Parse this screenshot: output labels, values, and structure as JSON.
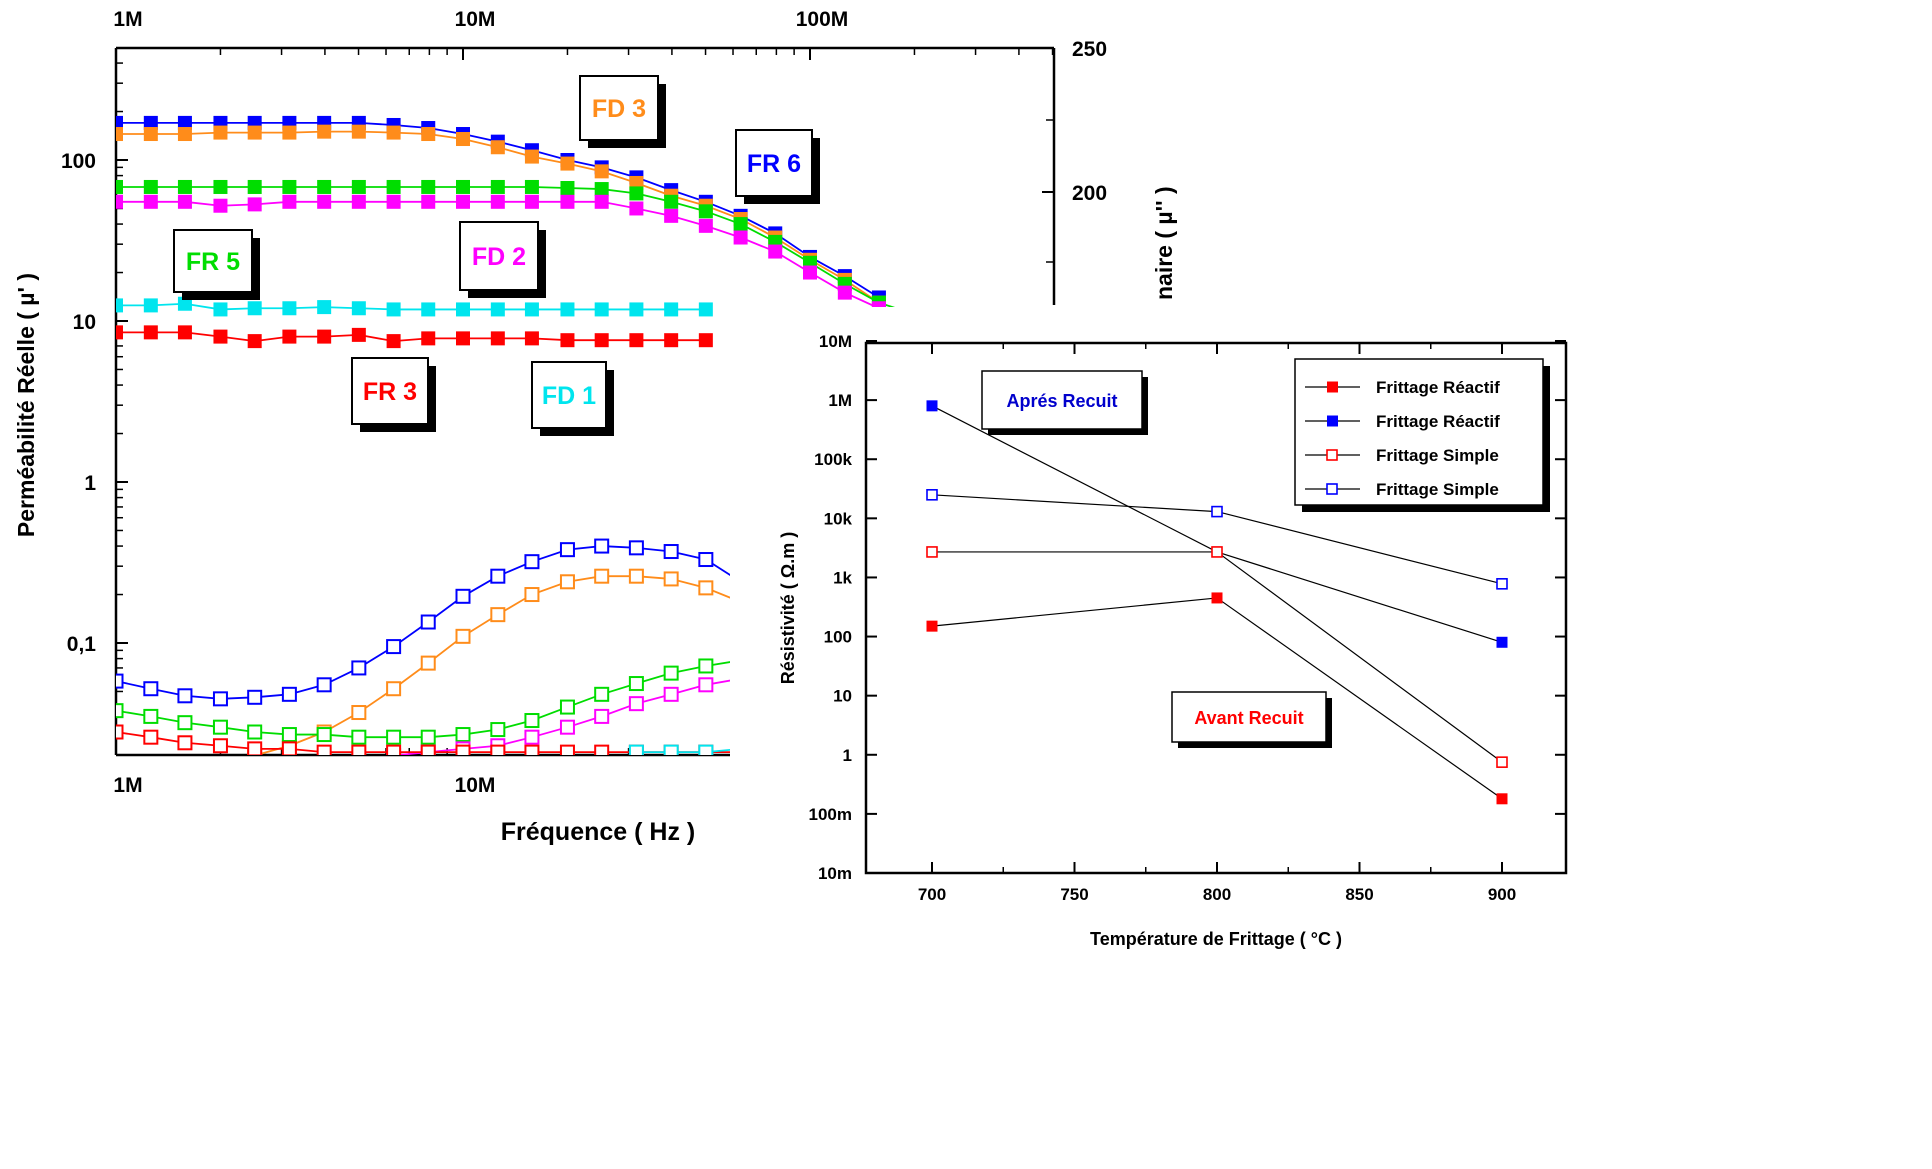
{
  "chart_data": [
    {
      "type": "line",
      "xscale": "log",
      "yscale": "log",
      "xlim": [
        1000000,
        60000000
      ],
      "ylim": [
        0.02,
        500
      ],
      "x_tick_labels": [
        "1M",
        "10M"
      ],
      "top_tick_labels": [
        "1M",
        "10M",
        "100M"
      ],
      "y_tick_labels": [
        "100",
        "10",
        "1",
        "0,1"
      ],
      "right_tick_labels": [
        "250",
        "200"
      ],
      "xlabel": "Fréquence ( Hz )",
      "ylabel": "Perméabilité Réelle ( µ' )",
      "ylabel_right": "naire ( µ'' )",
      "annotations": [
        "FD 3",
        "FR 6",
        "FR 5",
        "FD 2",
        "FR 3",
        "FD 1"
      ],
      "series": [
        {
          "name": "FR 6",
          "part": "real",
          "color": "#0000ff",
          "x": [
            1.0,
            1.26,
            1.58,
            2.0,
            2.51,
            3.16,
            3.98,
            5.01,
            6.31,
            7.94,
            10.0,
            12.6,
            15.8,
            20.0,
            25.1,
            31.6,
            39.8,
            50.1,
            63.1,
            79.4,
            100,
            126,
            158
          ],
          "y": [
            170,
            170,
            170,
            170,
            170,
            170,
            170,
            170,
            165,
            158,
            145,
            130,
            115,
            100,
            90,
            78,
            65,
            55,
            45,
            35,
            25,
            19,
            14
          ]
        },
        {
          "name": "FD 3",
          "part": "real",
          "color": "#ff8c1a",
          "x": [
            1.0,
            1.26,
            1.58,
            2.0,
            2.51,
            3.16,
            3.98,
            5.01,
            6.31,
            7.94,
            10.0,
            12.6,
            15.8,
            20.0,
            25.1,
            31.6,
            39.8,
            50.1,
            63.1,
            79.4,
            100,
            126,
            158
          ],
          "y": [
            145,
            145,
            145,
            148,
            148,
            148,
            150,
            150,
            148,
            145,
            135,
            120,
            105,
            95,
            85,
            72,
            60,
            52,
            43,
            33,
            24,
            18,
            13
          ]
        },
        {
          "name": "FR 5",
          "part": "real",
          "color": "#00dd00",
          "x": [
            1.0,
            1.26,
            1.58,
            2.0,
            2.51,
            3.16,
            3.98,
            5.01,
            6.31,
            7.94,
            10.0,
            12.6,
            15.8,
            20.0,
            25.1,
            31.6,
            39.8,
            50.1,
            63.1,
            79.4,
            100,
            126,
            158,
            200
          ],
          "y": [
            68,
            68,
            68,
            68,
            68,
            68,
            68,
            68,
            68,
            68,
            68,
            68,
            68,
            67,
            66,
            62,
            55,
            48,
            40,
            31,
            23,
            17,
            13,
            11
          ]
        },
        {
          "name": "FD 2",
          "part": "real",
          "color": "#ff00ff",
          "x": [
            1.0,
            1.26,
            1.58,
            2.0,
            2.51,
            3.16,
            3.98,
            5.01,
            6.31,
            7.94,
            10.0,
            12.6,
            15.8,
            20.0,
            25.1,
            31.6,
            39.8,
            50.1,
            63.1,
            79.4,
            100,
            126,
            158
          ],
          "y": [
            55,
            55,
            55,
            52,
            53,
            55,
            55,
            55,
            55,
            55,
            55,
            55,
            55,
            55,
            55,
            50,
            45,
            39,
            33,
            27,
            20,
            15,
            12
          ]
        },
        {
          "name": "FD 1",
          "part": "real",
          "color": "#00e5ee",
          "x": [
            1.0,
            1.26,
            1.58,
            2.0,
            2.51,
            3.16,
            3.98,
            5.01,
            6.31,
            7.94,
            10.0,
            12.6,
            15.8,
            20.0,
            25.1,
            31.6,
            39.8,
            50.1
          ],
          "y": [
            12.5,
            12.5,
            12.8,
            11.8,
            12,
            12,
            12.2,
            12,
            11.8,
            11.8,
            11.8,
            11.8,
            11.8,
            11.8,
            11.8,
            11.8,
            11.8,
            11.8
          ]
        },
        {
          "name": "FR 3",
          "part": "real",
          "color": "#ff0000",
          "x": [
            1.0,
            1.26,
            1.58,
            2.0,
            2.51,
            3.16,
            3.98,
            5.01,
            6.31,
            7.94,
            10.0,
            12.6,
            15.8,
            20.0,
            25.1,
            31.6,
            39.8,
            50.1
          ],
          "y": [
            8.5,
            8.5,
            8.5,
            8.0,
            7.5,
            8,
            8,
            8.2,
            7.5,
            7.8,
            7.8,
            7.8,
            7.8,
            7.6,
            7.6,
            7.6,
            7.6,
            7.6
          ]
        },
        {
          "name": "FR 6",
          "part": "imaginary",
          "color": "#0000ff",
          "x": [
            1.0,
            1.26,
            1.58,
            2.0,
            2.51,
            3.16,
            3.98,
            5.01,
            6.31,
            7.94,
            10.0,
            12.6,
            15.8,
            20.0,
            25.1,
            31.6,
            39.8,
            50.1,
            63.1
          ],
          "y": [
            0.058,
            0.052,
            0.047,
            0.045,
            0.046,
            0.048,
            0.055,
            0.07,
            0.095,
            0.135,
            0.195,
            0.26,
            0.32,
            0.38,
            0.4,
            0.39,
            0.37,
            0.33,
            0.24
          ]
        },
        {
          "name": "FD 3",
          "part": "imaginary",
          "color": "#ff8c1a",
          "x": [
            2.0,
            2.51,
            3.16,
            3.98,
            5.01,
            6.31,
            7.94,
            10.0,
            12.6,
            15.8,
            20.0,
            25.1,
            31.6,
            39.8,
            50.1,
            63.1
          ],
          "y": [
            0.018,
            0.02,
            0.023,
            0.028,
            0.037,
            0.052,
            0.075,
            0.11,
            0.15,
            0.2,
            0.24,
            0.26,
            0.26,
            0.25,
            0.22,
            0.18
          ]
        },
        {
          "name": "FR 5",
          "part": "imaginary",
          "color": "#00dd00",
          "x": [
            1.0,
            1.26,
            1.58,
            2.0,
            2.51,
            3.16,
            3.98,
            5.01,
            6.31,
            7.94,
            10.0,
            12.6,
            15.8,
            20.0,
            25.1,
            31.6,
            39.8,
            50.1,
            63.1
          ],
          "y": [
            0.038,
            0.035,
            0.032,
            0.03,
            0.028,
            0.027,
            0.027,
            0.026,
            0.026,
            0.026,
            0.027,
            0.029,
            0.033,
            0.04,
            0.048,
            0.056,
            0.065,
            0.072,
            0.078
          ]
        },
        {
          "name": "FD 2",
          "part": "imaginary",
          "color": "#ff00ff",
          "x": [
            6.31,
            7.94,
            10.0,
            12.6,
            15.8,
            20.0,
            25.1,
            31.6,
            39.8,
            50.1,
            63.1
          ],
          "y": [
            0.02,
            0.021,
            0.022,
            0.023,
            0.026,
            0.03,
            0.035,
            0.042,
            0.048,
            0.055,
            0.06
          ]
        },
        {
          "name": "FR 3",
          "part": "imaginary",
          "color": "#ff0000",
          "x": [
            1.0,
            1.26,
            1.58,
            2.0,
            2.51,
            3.16,
            3.98,
            5.01,
            6.31,
            7.94,
            10.0,
            12.6,
            15.8,
            20.0,
            25.1,
            31.6,
            39.8,
            50.1,
            63.1
          ],
          "y": [
            0.028,
            0.026,
            0.024,
            0.023,
            0.022,
            0.022,
            0.021,
            0.021,
            0.021,
            0.021,
            0.021,
            0.021,
            0.021,
            0.021,
            0.021,
            0.021,
            0.021,
            0.021,
            0.021
          ]
        },
        {
          "name": "FD 1",
          "part": "imaginary",
          "color": "#00e5ee",
          "x": [
            31.6,
            39.8,
            50.1,
            63.1
          ],
          "y": [
            0.021,
            0.021,
            0.021,
            0.022
          ]
        }
      ]
    },
    {
      "type": "scatter",
      "yscale": "log",
      "xlim": [
        680,
        920
      ],
      "ylim": [
        0.01,
        10000000
      ],
      "x_tick_labels": [
        "700",
        "750",
        "800",
        "850",
        "900"
      ],
      "y_tick_labels": [
        "10m",
        "100m",
        "1",
        "10",
        "100",
        "1k",
        "10k",
        "100k",
        "1M",
        "10M"
      ],
      "xlabel": "Température de Frittage ( °C )",
      "ylabel": "Résistivité ( Ω.m )",
      "annotations": [
        "Aprés Recuit",
        "Avant Recuit"
      ],
      "legend_position": "top-right",
      "series": [
        {
          "name": "Frittage Réactif",
          "color": "#ff0000",
          "marker": "filled-square",
          "x": [
            700,
            800,
            900
          ],
          "y": [
            150,
            450,
            0.18
          ]
        },
        {
          "name": "Frittage Réactif",
          "color": "#0000ff",
          "marker": "filled-square",
          "x": [
            700,
            800,
            900
          ],
          "y": [
            800000,
            2700,
            80
          ]
        },
        {
          "name": "Frittage Simple",
          "color": "#ff0000",
          "marker": "open-square",
          "x": [
            700,
            800,
            900
          ],
          "y": [
            2700,
            2700,
            0.75
          ]
        },
        {
          "name": "Frittage Simple",
          "color": "#0000ff",
          "marker": "open-square",
          "x": [
            700,
            800,
            900
          ],
          "y": [
            25000,
            13000,
            780
          ]
        }
      ]
    }
  ]
}
